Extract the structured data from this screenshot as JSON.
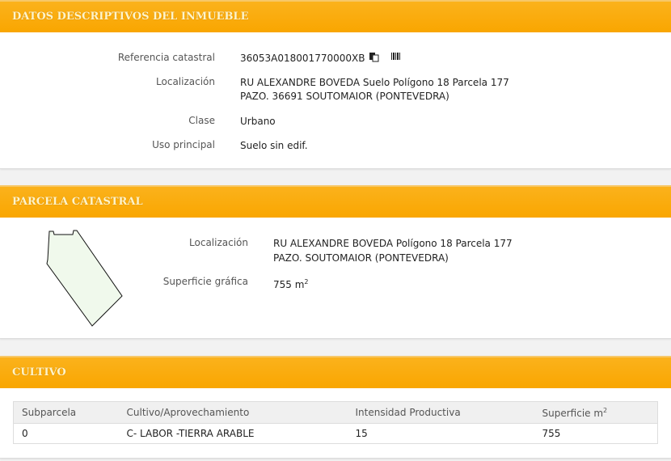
{
  "datos": {
    "title": "DATOS DESCRIPTIVOS DEL INMUEBLE",
    "ref_label": "Referencia catastral",
    "ref_value": "36053A018001770000XB",
    "loc_label": "Localización",
    "loc_line1": "RU ALEXANDRE BOVEDA Suelo Polígono 18 Parcela 177",
    "loc_line2": "PAZO. 36691 SOUTOMAIOR (PONTEVEDRA)",
    "clase_label": "Clase",
    "clase_value": "Urbano",
    "uso_label": "Uso principal",
    "uso_value": "Suelo sin edif."
  },
  "parcela": {
    "title": "PARCELA CATASTRAL",
    "loc_label": "Localización",
    "loc_line1": "RU ALEXANDRE BOVEDA Polígono 18 Parcela 177",
    "loc_line2": "PAZO. SOUTOMAIOR (PONTEVEDRA)",
    "sup_label": "Superficie gráfica",
    "sup_value": "755 m",
    "sup_exp": "2"
  },
  "cultivo": {
    "title": "CULTIVO",
    "headers": [
      "Subparcela",
      "Cultivo/Aprovechamiento",
      "Intensidad Productiva",
      "Superficie m"
    ],
    "header_exp": "2",
    "rows": [
      [
        "0",
        "C- LABOR -TIERRA ARABLE",
        "15",
        "755"
      ]
    ]
  },
  "colors": {
    "header": "#f9a800",
    "parcel_fill": "#f0f9ec"
  }
}
